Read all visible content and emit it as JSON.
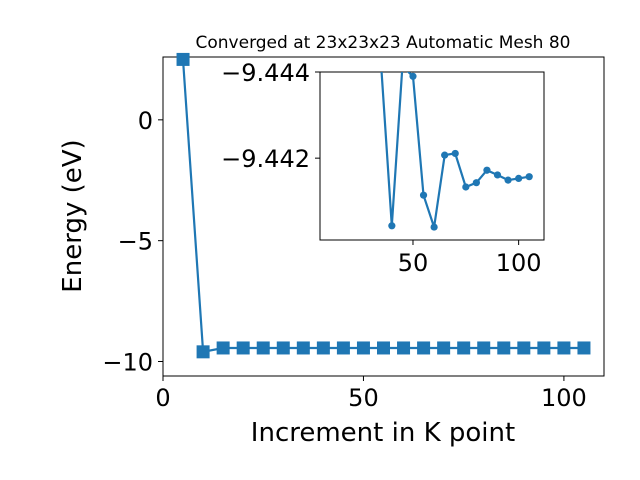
{
  "chart_data": [
    {
      "type": "line",
      "title": "Converged at 23x23x23 Automatic Mesh 80",
      "xlabel": "Increment in K point",
      "ylabel": "Energy (eV)",
      "xlim": [
        0,
        110
      ],
      "ylim": [
        -10.6,
        2.6
      ],
      "xticks": [
        0,
        50,
        100
      ],
      "xtick_labels": [
        "0",
        "50",
        "100"
      ],
      "yticks": [
        0,
        -5,
        -10
      ],
      "ytick_labels": [
        "0",
        "−5",
        "−10"
      ],
      "marker": "square",
      "grid": false,
      "series": [
        {
          "color": "#1f77b4",
          "x": [
            5,
            10,
            15,
            20,
            25,
            30,
            35,
            40,
            45,
            50,
            55,
            60,
            65,
            70,
            75,
            80,
            85,
            90,
            95,
            100,
            105
          ],
          "y": [
            2.5,
            -9.6,
            -9.44,
            -9.44,
            -9.44,
            -9.44,
            -9.44,
            -9.44,
            -9.44,
            -9.44,
            -9.44,
            -9.44,
            -9.44,
            -9.44,
            -9.44,
            -9.44,
            -9.44,
            -9.44,
            -9.44,
            -9.44,
            -9.44
          ]
        }
      ]
    },
    {
      "type": "line",
      "title": "",
      "inset": true,
      "xlim": [
        6,
        112
      ],
      "ylim": [
        -9.444,
        -9.4401
      ],
      "xticks": [
        50,
        100
      ],
      "xtick_labels": [
        "50",
        "100"
      ],
      "yticks": [
        -9.444,
        -9.442
      ],
      "ytick_labels": [
        "−9.444",
        "−9.442"
      ],
      "marker": "circle",
      "grid": false,
      "series": [
        {
          "color": "#1f77b4",
          "x": [
            35,
            40,
            45,
            50,
            55,
            60,
            65,
            70,
            75,
            80,
            85,
            90,
            95,
            100,
            105
          ],
          "y": [
            -9.4441,
            -9.44043,
            -9.44413,
            -9.4439,
            -9.44114,
            -9.4404,
            -9.44207,
            -9.44211,
            -9.44133,
            -9.44143,
            -9.44172,
            -9.44161,
            -9.44149,
            -9.44153,
            -9.44157
          ]
        }
      ]
    }
  ]
}
